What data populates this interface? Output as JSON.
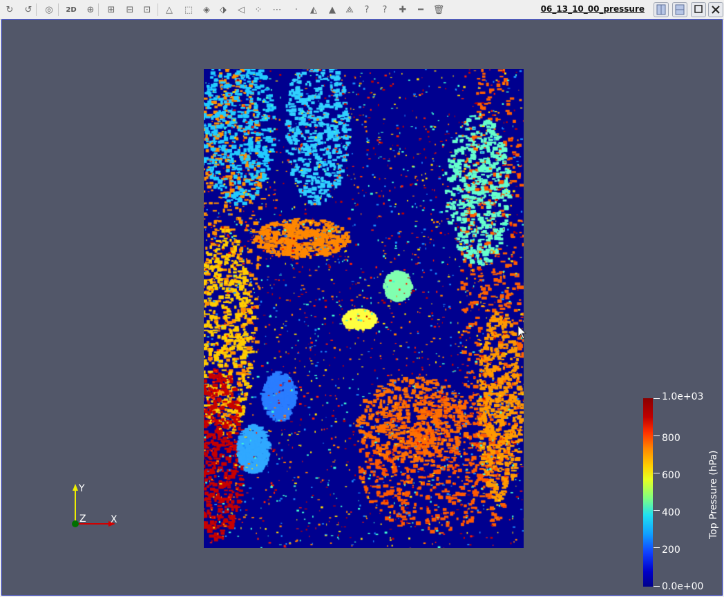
{
  "toolbar": {
    "buttons": [
      {
        "icon": "reset-camera-icon",
        "glyph": "↻"
      },
      {
        "icon": "reset-camera-closest-icon",
        "glyph": "↺"
      },
      {
        "icon": "camera-icon",
        "glyph": "◎"
      },
      {
        "icon": "2d-3d-toggle",
        "label": "2D"
      },
      {
        "icon": "zoom-to-box-icon",
        "glyph": "⊕"
      },
      {
        "icon": "select-cells-icon",
        "glyph": "⊞"
      },
      {
        "icon": "deselect-icon",
        "glyph": "⊟"
      },
      {
        "icon": "select-points-icon",
        "glyph": "⊡"
      },
      {
        "icon": "select-cells-on-icon",
        "glyph": "△"
      },
      {
        "icon": "select-points-on-icon",
        "glyph": "⬚"
      },
      {
        "icon": "select-blocks-icon",
        "glyph": "◈"
      },
      {
        "icon": "select-frustum-cells-icon",
        "glyph": "⬗"
      },
      {
        "icon": "select-frustum-points-icon",
        "glyph": "◁"
      },
      {
        "icon": "polygon-select-cells-icon",
        "glyph": "⁘"
      },
      {
        "icon": "polygon-select-points-icon",
        "glyph": "⋯"
      },
      {
        "icon": "interactive-select-cells-icon",
        "glyph": "·"
      },
      {
        "icon": "interactive-select-points-icon",
        "glyph": "◭"
      },
      {
        "icon": "hover-cells-icon",
        "glyph": "▲"
      },
      {
        "icon": "hover-points-icon",
        "glyph": "⟁"
      },
      {
        "icon": "find-data-icon",
        "glyph": "?"
      },
      {
        "icon": "query-icon",
        "glyph": "?"
      },
      {
        "icon": "grow-selection-icon",
        "glyph": "✚"
      },
      {
        "icon": "shrink-selection-icon",
        "glyph": "━"
      },
      {
        "icon": "clear-selection-icon",
        "glyph": "🗑"
      }
    ],
    "view_title": "06_13_10_00_pressure",
    "window_buttons": [
      "split-horizontal-icon",
      "split-vertical-icon",
      "maximize-icon",
      "close-icon"
    ]
  },
  "viewport": {
    "background": "#525769",
    "axes": {
      "x": "X",
      "y": "Y",
      "z": "Z"
    },
    "colorbar": {
      "title": "Top Pressure (hPa)",
      "labels": [
        "1.0e+03",
        "800",
        "600",
        "400",
        "200",
        "0.0e+00"
      ],
      "range": [
        0,
        1000
      ]
    }
  }
}
